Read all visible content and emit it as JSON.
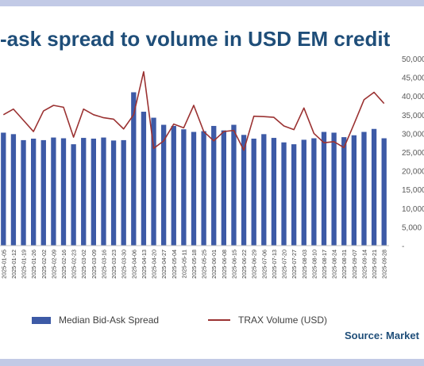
{
  "title": "-ask spread to volume in USD EM credit",
  "source": "Source: Market",
  "legend": {
    "bar_label": "Median Bid-Ask Spread",
    "line_label": "TRAX Volume (USD)"
  },
  "colors": {
    "bars": "#3d5aa6",
    "line": "#9b3232",
    "title": "#1f4e79",
    "frame": "#c2cae6"
  },
  "chart_data": {
    "type": "bar",
    "categories": [
      "2025-01-05",
      "2025-01-12",
      "2025-01-19",
      "2025-01-26",
      "2025-02-02",
      "2025-02-09",
      "2025-02-16",
      "2025-02-23",
      "2025-03-02",
      "2025-03-09",
      "2025-03-16",
      "2025-03-23",
      "2025-03-30",
      "2025-04-06",
      "2025-04-13",
      "2025-04-20",
      "2025-04-27",
      "2025-05-04",
      "2025-05-11",
      "2025-05-18",
      "2025-05-25",
      "2025-06-01",
      "2025-06-08",
      "2025-06-15",
      "2025-06-22",
      "2025-06-29",
      "2025-07-06",
      "2025-07-13",
      "2025-07-20",
      "2025-07-27",
      "2025-08-03",
      "2025-08-10",
      "2025-08-17",
      "2025-08-24",
      "2025-08-31",
      "2025-09-07",
      "2025-09-14",
      "2025-09-21",
      "2025-09-28"
    ],
    "series": [
      {
        "name": "Median Bid-Ask Spread",
        "type": "bar",
        "values": [
          30.2,
          29.8,
          28.2,
          28.6,
          28.2,
          28.9,
          28.7,
          27.1,
          28.8,
          28.6,
          28.9,
          28.1,
          28.2,
          41.0,
          35.8,
          34.2,
          32.3,
          32.0,
          31.1,
          30.4,
          30.6,
          32.0,
          30.8,
          32.3,
          29.6,
          28.6,
          29.8,
          28.8,
          27.6,
          27.1,
          28.3,
          28.7,
          30.4,
          30.2,
          29.0,
          29.5,
          30.4,
          31.2,
          28.7
        ]
      },
      {
        "name": "TRAX Volume (USD)",
        "type": "line",
        "axis": "right",
        "values": [
          35000,
          36500,
          33500,
          30500,
          36000,
          37500,
          37000,
          29000,
          36500,
          35000,
          34200,
          33800,
          31200,
          35000,
          46500,
          26000,
          28000,
          32500,
          31500,
          37500,
          30500,
          28000,
          30500,
          30800,
          25500,
          34600,
          34500,
          34300,
          32000,
          31000,
          36800,
          30000,
          27500,
          27800,
          26200,
          32500,
          39000,
          41000,
          38000
        ]
      }
    ],
    "y_right": {
      "ticks": [
        "50,000",
        "45,000",
        "40,000",
        "35,000",
        "30,000",
        "25,000",
        "20,000",
        "15,000",
        "10,000",
        "5,000",
        "-"
      ],
      "ylim": [
        0,
        50000
      ]
    },
    "y_left_ylim": [
      0,
      50
    ],
    "grid": false,
    "legend_position": "bottom"
  }
}
